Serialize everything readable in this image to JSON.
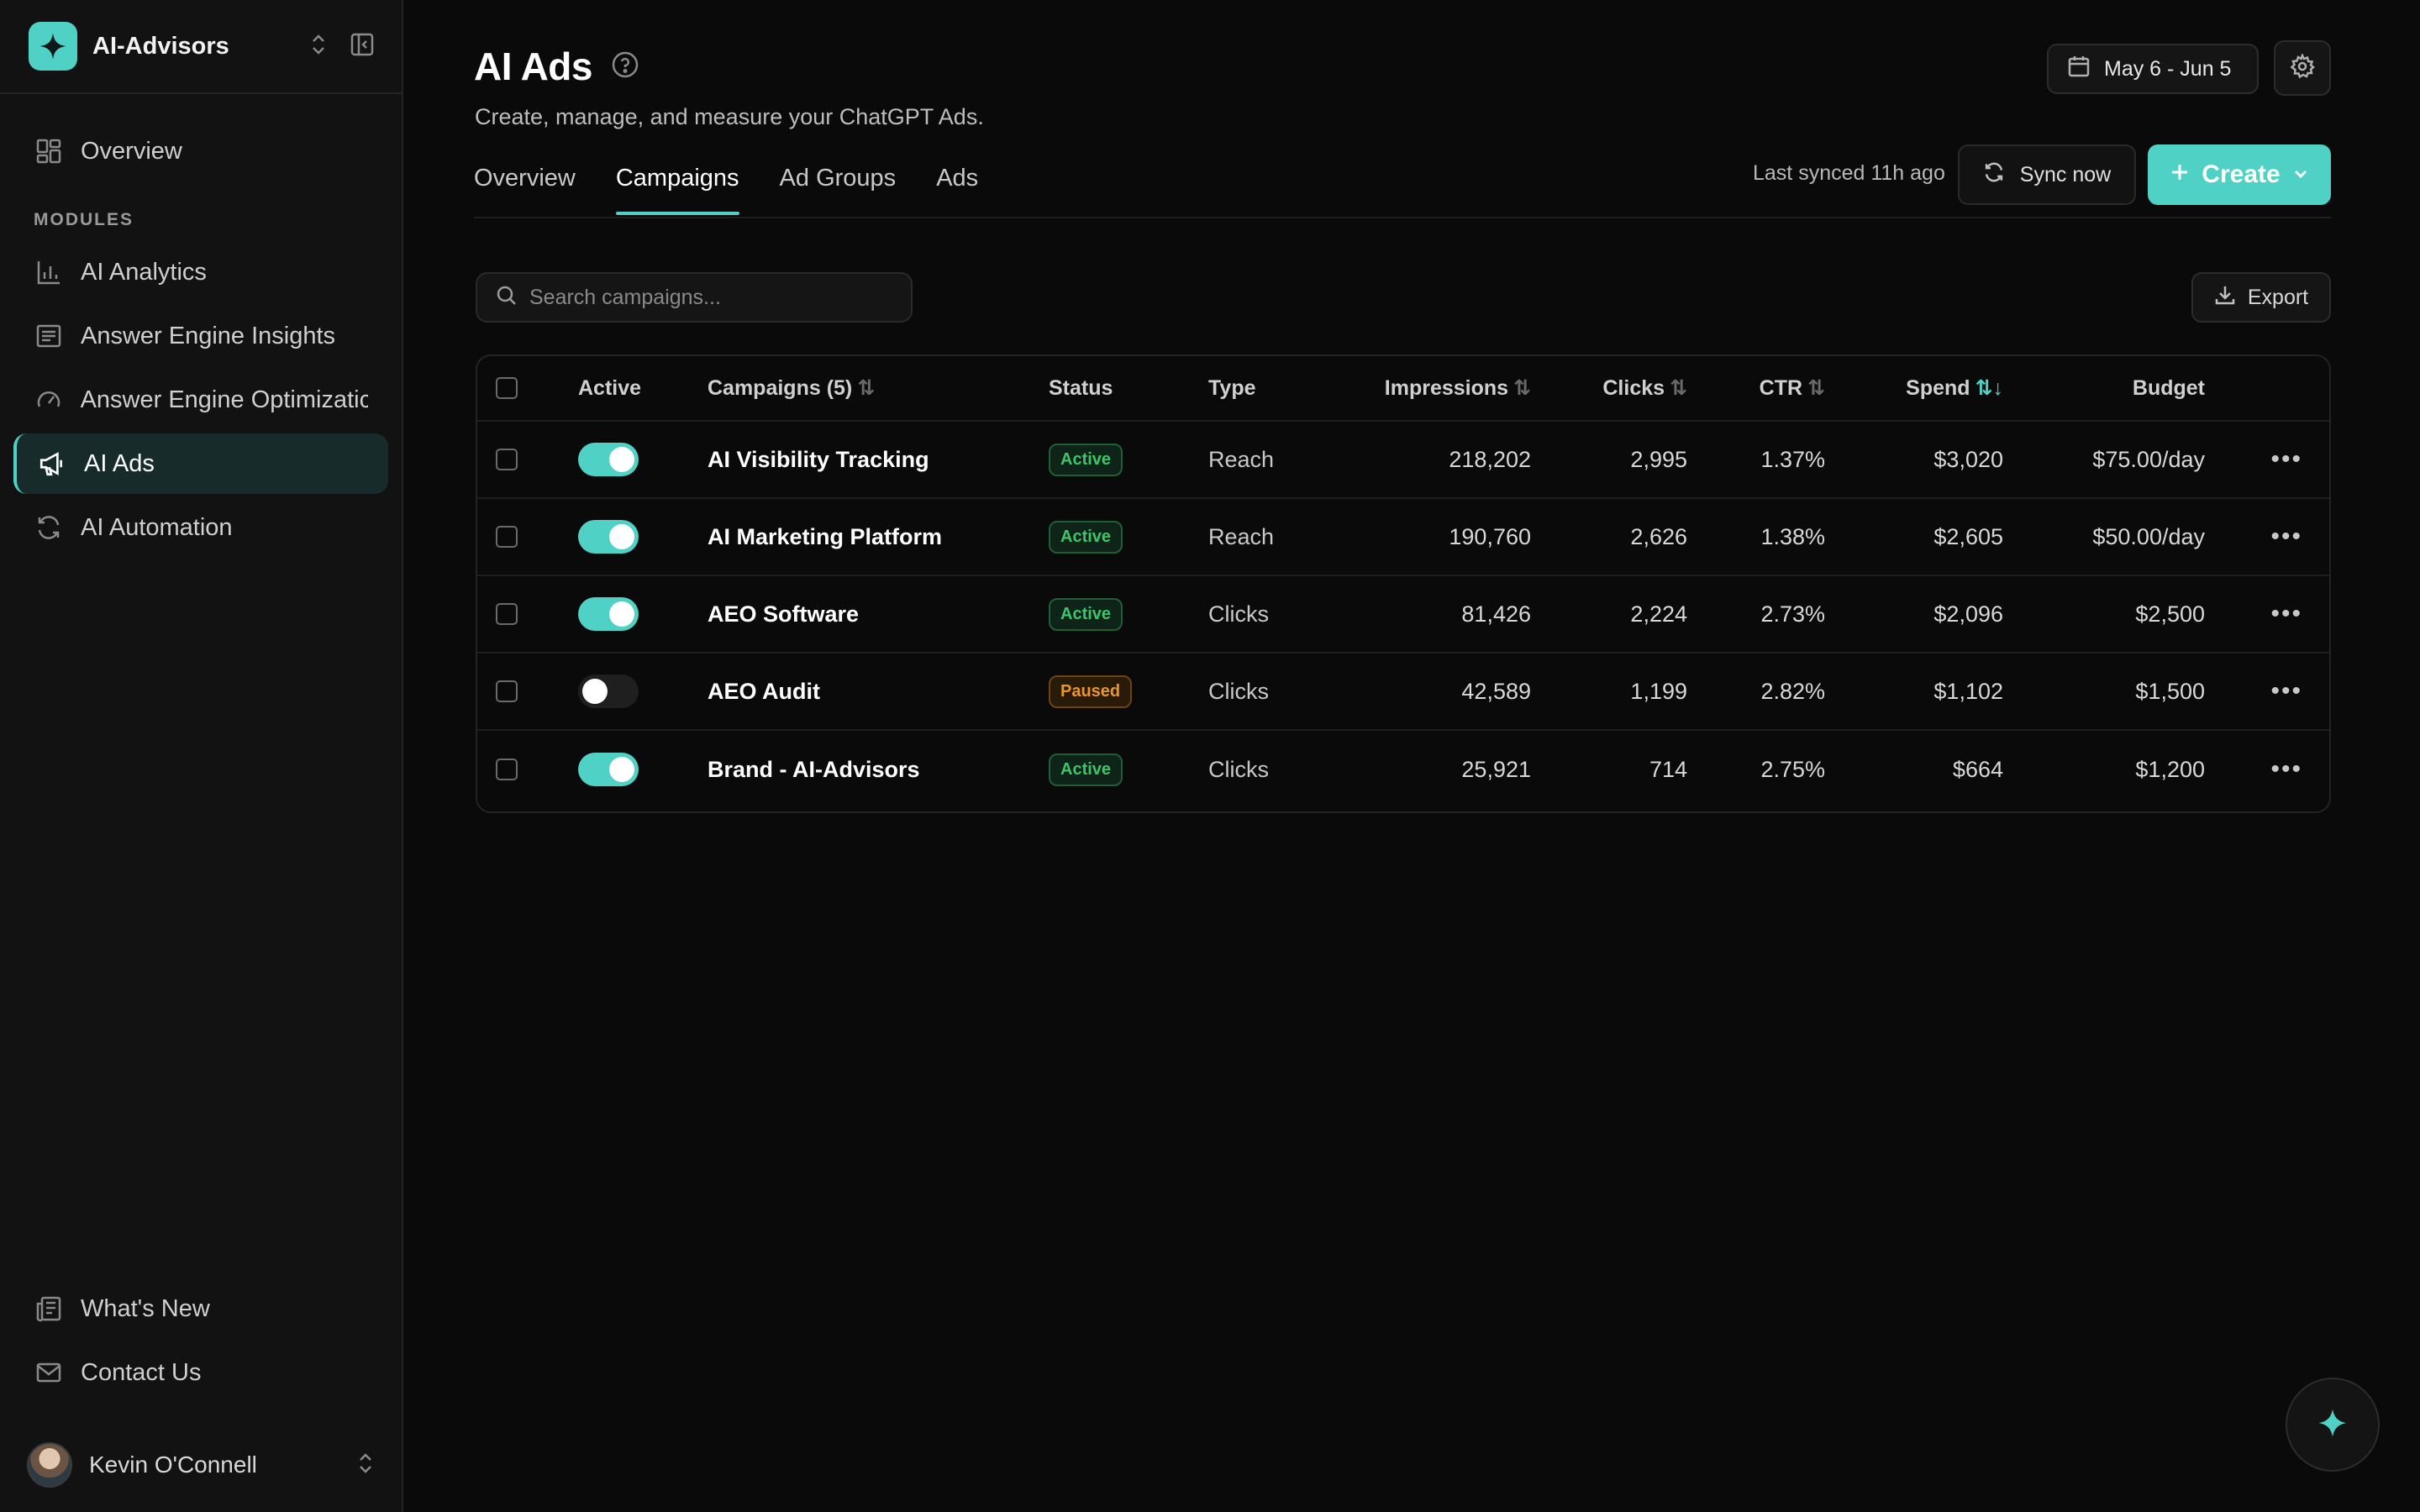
{
  "workspace": {
    "name": "AI-Advisors"
  },
  "sidebar": {
    "top_items": [
      {
        "label": "Overview",
        "icon": "dashboard-icon"
      }
    ],
    "section_label": "MODULES",
    "items": [
      {
        "label": "AI Analytics",
        "icon": "bar-chart-icon"
      },
      {
        "label": "Answer Engine Insights",
        "icon": "document-icon"
      },
      {
        "label": "Answer Engine Optimizatic",
        "icon": "gauge-icon"
      },
      {
        "label": "AI Ads",
        "icon": "megaphone-icon",
        "active": true
      },
      {
        "label": "AI Automation",
        "icon": "refresh-icon"
      }
    ],
    "bottom_items": [
      {
        "label": "What's New",
        "icon": "newspaper-icon"
      },
      {
        "label": "Contact Us",
        "icon": "mail-icon"
      }
    ],
    "user": {
      "name": "Kevin O'Connell"
    }
  },
  "header": {
    "title": "AI Ads",
    "subtitle": "Create, manage, and measure your ChatGPT Ads.",
    "date_range": "May 6 - Jun 5"
  },
  "tabs": [
    {
      "label": "Overview"
    },
    {
      "label": "Campaigns",
      "active": true
    },
    {
      "label": "Ad Groups"
    },
    {
      "label": "Ads"
    }
  ],
  "sync": {
    "last_synced": "Last synced 11h ago",
    "button": "Sync now"
  },
  "create": {
    "label": "Create"
  },
  "search": {
    "placeholder": "Search campaigns..."
  },
  "export": {
    "label": "Export"
  },
  "table": {
    "headers": {
      "active": "Active",
      "campaigns": "Campaigns (5)",
      "status": "Status",
      "type": "Type",
      "impressions": "Impressions",
      "clicks": "Clicks",
      "ctr": "CTR",
      "spend": "Spend",
      "budget": "Budget"
    },
    "rows": [
      {
        "name": "AI Visibility Tracking",
        "active": true,
        "status": "Active",
        "type": "Reach",
        "impressions": "218,202",
        "clicks": "2,995",
        "ctr": "1.37%",
        "spend": "$3,020",
        "budget": "$75.00/day"
      },
      {
        "name": "AI Marketing Platform",
        "active": true,
        "status": "Active",
        "type": "Reach",
        "impressions": "190,760",
        "clicks": "2,626",
        "ctr": "1.38%",
        "spend": "$2,605",
        "budget": "$50.00/day"
      },
      {
        "name": "AEO Software",
        "active": true,
        "status": "Active",
        "type": "Clicks",
        "impressions": "81,426",
        "clicks": "2,224",
        "ctr": "2.73%",
        "spend": "$2,096",
        "budget": "$2,500"
      },
      {
        "name": "AEO Audit",
        "active": false,
        "status": "Paused",
        "type": "Clicks",
        "impressions": "42,589",
        "clicks": "1,199",
        "ctr": "2.82%",
        "spend": "$1,102",
        "budget": "$1,500"
      },
      {
        "name": "Brand - AI-Advisors",
        "active": true,
        "status": "Active",
        "type": "Clicks",
        "impressions": "25,921",
        "clicks": "714",
        "ctr": "2.75%",
        "spend": "$664",
        "budget": "$1,200"
      }
    ]
  },
  "colors": {
    "accent": "#4fd1c5",
    "active_badge": "#3ec46a",
    "paused_badge": "#e8962e"
  }
}
